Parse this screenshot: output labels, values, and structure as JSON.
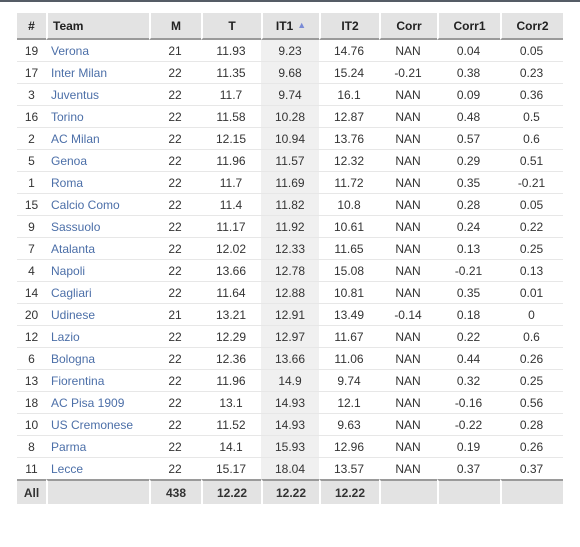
{
  "columns": {
    "rank": "#",
    "team": "Team",
    "m": "M",
    "t": "T",
    "it1": "IT1",
    "it2": "IT2",
    "corr": "Corr",
    "corr1": "Corr1",
    "corr2": "Corr2"
  },
  "sort": {
    "column": "IT1",
    "direction": "ascending",
    "indicator": "▲"
  },
  "rows": [
    {
      "rank": "19",
      "team": "Verona",
      "m": "21",
      "t": "11.93",
      "it1": "9.23",
      "it2": "14.76",
      "corr": "NAN",
      "corr1": "0.04",
      "corr2": "0.05"
    },
    {
      "rank": "17",
      "team": "Inter Milan",
      "m": "22",
      "t": "11.35",
      "it1": "9.68",
      "it2": "15.24",
      "corr": "-0.21",
      "corr1": "0.38",
      "corr2": "0.23"
    },
    {
      "rank": "3",
      "team": "Juventus",
      "m": "22",
      "t": "11.7",
      "it1": "9.74",
      "it2": "16.1",
      "corr": "NAN",
      "corr1": "0.09",
      "corr2": "0.36"
    },
    {
      "rank": "16",
      "team": "Torino",
      "m": "22",
      "t": "11.58",
      "it1": "10.28",
      "it2": "12.87",
      "corr": "NAN",
      "corr1": "0.48",
      "corr2": "0.5"
    },
    {
      "rank": "2",
      "team": "AC Milan",
      "m": "22",
      "t": "12.15",
      "it1": "10.94",
      "it2": "13.76",
      "corr": "NAN",
      "corr1": "0.57",
      "corr2": "0.6"
    },
    {
      "rank": "5",
      "team": "Genoa",
      "m": "22",
      "t": "11.96",
      "it1": "11.57",
      "it2": "12.32",
      "corr": "NAN",
      "corr1": "0.29",
      "corr2": "0.51"
    },
    {
      "rank": "1",
      "team": "Roma",
      "m": "22",
      "t": "11.7",
      "it1": "11.69",
      "it2": "11.72",
      "corr": "NAN",
      "corr1": "0.35",
      "corr2": "-0.21"
    },
    {
      "rank": "15",
      "team": "Calcio Como",
      "m": "22",
      "t": "11.4",
      "it1": "11.82",
      "it2": "10.8",
      "corr": "NAN",
      "corr1": "0.28",
      "corr2": "0.05"
    },
    {
      "rank": "9",
      "team": "Sassuolo",
      "m": "22",
      "t": "11.17",
      "it1": "11.92",
      "it2": "10.61",
      "corr": "NAN",
      "corr1": "0.24",
      "corr2": "0.22"
    },
    {
      "rank": "7",
      "team": "Atalanta",
      "m": "22",
      "t": "12.02",
      "it1": "12.33",
      "it2": "11.65",
      "corr": "NAN",
      "corr1": "0.13",
      "corr2": "0.25"
    },
    {
      "rank": "4",
      "team": "Napoli",
      "m": "22",
      "t": "13.66",
      "it1": "12.78",
      "it2": "15.08",
      "corr": "NAN",
      "corr1": "-0.21",
      "corr2": "0.13"
    },
    {
      "rank": "14",
      "team": "Cagliari",
      "m": "22",
      "t": "11.64",
      "it1": "12.88",
      "it2": "10.81",
      "corr": "NAN",
      "corr1": "0.35",
      "corr2": "0.01"
    },
    {
      "rank": "20",
      "team": "Udinese",
      "m": "21",
      "t": "13.21",
      "it1": "12.91",
      "it2": "13.49",
      "corr": "-0.14",
      "corr1": "0.18",
      "corr2": "0"
    },
    {
      "rank": "12",
      "team": "Lazio",
      "m": "22",
      "t": "12.29",
      "it1": "12.97",
      "it2": "11.67",
      "corr": "NAN",
      "corr1": "0.22",
      "corr2": "0.6"
    },
    {
      "rank": "6",
      "team": "Bologna",
      "m": "22",
      "t": "12.36",
      "it1": "13.66",
      "it2": "11.06",
      "corr": "NAN",
      "corr1": "0.44",
      "corr2": "0.26"
    },
    {
      "rank": "13",
      "team": "Fiorentina",
      "m": "22",
      "t": "11.96",
      "it1": "14.9",
      "it2": "9.74",
      "corr": "NAN",
      "corr1": "0.32",
      "corr2": "0.25"
    },
    {
      "rank": "18",
      "team": "AC Pisa 1909",
      "m": "22",
      "t": "13.1",
      "it1": "14.93",
      "it2": "12.1",
      "corr": "NAN",
      "corr1": "-0.16",
      "corr2": "0.56"
    },
    {
      "rank": "10",
      "team": "US Cremonese",
      "m": "22",
      "t": "11.52",
      "it1": "14.93",
      "it2": "9.63",
      "corr": "NAN",
      "corr1": "-0.22",
      "corr2": "0.28"
    },
    {
      "rank": "8",
      "team": "Parma",
      "m": "22",
      "t": "14.1",
      "it1": "15.93",
      "it2": "12.96",
      "corr": "NAN",
      "corr1": "0.19",
      "corr2": "0.26"
    },
    {
      "rank": "11",
      "team": "Lecce",
      "m": "22",
      "t": "15.17",
      "it1": "18.04",
      "it2": "13.57",
      "corr": "NAN",
      "corr1": "0.37",
      "corr2": "0.37"
    }
  ],
  "footer": {
    "label": "All",
    "team": "",
    "m": "438",
    "t": "12.22",
    "it1": "12.22",
    "it2": "12.22",
    "corr": "",
    "corr1": "",
    "corr2": ""
  }
}
